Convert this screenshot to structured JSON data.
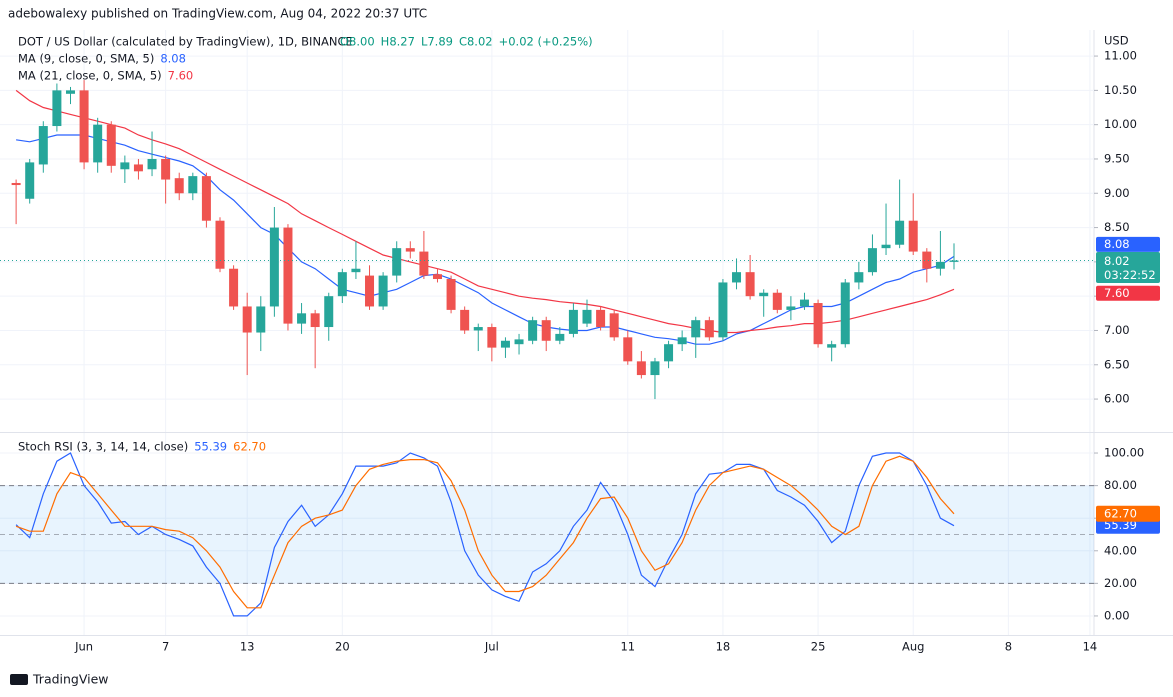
{
  "header": {
    "text": "adebowalexy published on TradingView.com, Aug 04, 2022 20:37 UTC"
  },
  "footer": {
    "brand": "TradingView"
  },
  "chart_data": [
    {
      "type": "candlestick",
      "title": "DOT / US Dollar (calculated by TradingView), 1D, BINANCE",
      "ohlc_legend": [
        "O8.00",
        "H8.27",
        "L7.89",
        "C8.02",
        "+0.02 (+0.25%)"
      ],
      "y_axis_label": "USD",
      "up_color": "#26a69a",
      "down_color": "#ef5350",
      "open": [
        9.15,
        8.92,
        9.42,
        9.98,
        10.45,
        10.5,
        9.45,
        10.0,
        9.35,
        9.42,
        9.35,
        9.5,
        9.22,
        9.0,
        9.25,
        8.6,
        7.9,
        7.35,
        6.97,
        7.35,
        8.5,
        7.1,
        7.25,
        7.05,
        7.5,
        7.85,
        7.8,
        7.35,
        7.8,
        8.2,
        8.15,
        7.82,
        7.75,
        7.3,
        7.0,
        7.05,
        6.75,
        6.8,
        6.85,
        7.15,
        6.85,
        6.95,
        7.1,
        7.3,
        7.25,
        6.9,
        6.55,
        6.35,
        6.55,
        6.8,
        6.9,
        7.15,
        6.9,
        7.7,
        7.85,
        7.5,
        7.55,
        7.3,
        7.35,
        7.4,
        6.75,
        6.8,
        7.7,
        7.85,
        8.2,
        8.25,
        8.6,
        8.15,
        7.9,
        8.0
      ],
      "high": [
        9.2,
        9.5,
        10.05,
        10.6,
        10.55,
        10.65,
        10.1,
        10.05,
        9.55,
        9.5,
        9.9,
        9.55,
        9.3,
        9.3,
        9.3,
        8.65,
        7.95,
        7.55,
        7.5,
        8.8,
        8.55,
        7.4,
        7.3,
        7.55,
        7.9,
        8.3,
        7.95,
        7.85,
        8.3,
        8.3,
        8.45,
        7.9,
        7.8,
        7.35,
        7.1,
        7.1,
        6.9,
        6.95,
        7.2,
        7.2,
        7.05,
        7.4,
        7.45,
        7.35,
        7.3,
        7.0,
        6.7,
        6.6,
        6.85,
        7.0,
        7.2,
        7.2,
        7.75,
        8.05,
        8.1,
        7.6,
        7.6,
        7.5,
        7.55,
        7.45,
        6.85,
        7.75,
        8.0,
        8.4,
        8.85,
        9.2,
        9.0,
        8.2,
        8.45,
        8.27
      ],
      "low": [
        8.55,
        8.85,
        9.3,
        9.9,
        10.3,
        9.35,
        9.3,
        9.3,
        9.15,
        9.2,
        9.25,
        8.85,
        8.9,
        8.9,
        8.5,
        7.85,
        7.3,
        6.35,
        6.7,
        7.2,
        7.0,
        6.95,
        6.45,
        6.85,
        7.4,
        7.75,
        7.3,
        7.3,
        7.7,
        8.05,
        7.75,
        7.7,
        7.25,
        6.95,
        6.7,
        6.55,
        6.6,
        6.65,
        6.8,
        6.7,
        6.8,
        6.9,
        7.05,
        7.0,
        6.85,
        6.5,
        6.3,
        6.0,
        6.45,
        6.7,
        6.6,
        6.85,
        6.85,
        7.6,
        7.45,
        7.2,
        7.25,
        7.15,
        7.3,
        6.75,
        6.55,
        6.75,
        7.6,
        7.8,
        8.1,
        8.2,
        8.1,
        7.7,
        7.8,
        7.89
      ],
      "close": [
        9.12,
        9.45,
        9.98,
        10.5,
        10.5,
        9.45,
        10.0,
        9.4,
        9.45,
        9.32,
        9.5,
        9.2,
        9.0,
        9.25,
        8.6,
        7.9,
        7.35,
        6.97,
        7.35,
        8.5,
        7.1,
        7.25,
        7.05,
        7.5,
        7.85,
        7.9,
        7.35,
        7.8,
        8.2,
        8.15,
        7.8,
        7.75,
        7.3,
        7.0,
        7.05,
        6.75,
        6.85,
        6.87,
        7.15,
        6.85,
        6.95,
        7.3,
        7.3,
        7.05,
        6.9,
        6.55,
        6.35,
        6.55,
        6.8,
        6.9,
        7.15,
        6.9,
        7.7,
        7.85,
        7.5,
        7.55,
        7.3,
        7.35,
        7.45,
        6.8,
        6.8,
        7.7,
        7.85,
        8.2,
        8.25,
        8.6,
        8.15,
        7.9,
        8.0,
        8.02
      ],
      "countdown": "03:22:52",
      "series": [
        {
          "name": "MA (9, close, 0, SMA, 5)",
          "color": "#2962ff",
          "last_label": "8.08",
          "values": [
            9.78,
            9.75,
            9.8,
            9.85,
            9.85,
            9.85,
            9.8,
            9.75,
            9.7,
            9.62,
            9.57,
            9.52,
            9.47,
            9.4,
            9.25,
            9.05,
            8.9,
            8.7,
            8.5,
            8.4,
            8.2,
            8.0,
            7.9,
            7.75,
            7.6,
            7.55,
            7.5,
            7.55,
            7.6,
            7.7,
            7.8,
            7.82,
            7.75,
            7.65,
            7.55,
            7.4,
            7.3,
            7.2,
            7.1,
            7.05,
            7.02,
            7.0,
            7.0,
            7.05,
            7.05,
            7.0,
            6.95,
            6.9,
            6.88,
            6.85,
            6.8,
            6.8,
            6.85,
            6.95,
            7.0,
            7.1,
            7.2,
            7.3,
            7.35,
            7.35,
            7.35,
            7.4,
            7.5,
            7.6,
            7.7,
            7.75,
            7.85,
            7.9,
            7.95,
            8.08
          ]
        },
        {
          "name": "MA (21, close, 0, SMA, 5)",
          "color": "#f23645",
          "last_label": "7.60",
          "values": [
            10.5,
            10.35,
            10.25,
            10.2,
            10.15,
            10.1,
            10.05,
            10.0,
            9.95,
            9.85,
            9.78,
            9.72,
            9.65,
            9.55,
            9.45,
            9.35,
            9.25,
            9.15,
            9.05,
            8.95,
            8.85,
            8.7,
            8.6,
            8.5,
            8.4,
            8.3,
            8.2,
            8.1,
            8.05,
            8.0,
            7.95,
            7.9,
            7.85,
            7.75,
            7.65,
            7.6,
            7.55,
            7.5,
            7.47,
            7.45,
            7.42,
            7.4,
            7.38,
            7.35,
            7.3,
            7.25,
            7.2,
            7.15,
            7.1,
            7.07,
            7.03,
            7.0,
            6.97,
            6.97,
            7.0,
            7.02,
            7.05,
            7.07,
            7.1,
            7.1,
            7.12,
            7.15,
            7.2,
            7.25,
            7.3,
            7.35,
            7.4,
            7.45,
            7.52,
            7.6
          ]
        }
      ],
      "xlim": [
        -0.45,
        79.3
      ],
      "ylim": [
        5.52,
        11.38
      ],
      "yticks": [
        {
          "value": 6,
          "label": "6.00"
        },
        {
          "value": 6.5,
          "label": "6.50"
        },
        {
          "value": 7,
          "label": "7.00"
        },
        {
          "value": 7.5,
          "label": "7.50"
        },
        {
          "value": 8,
          "label": "8.00"
        },
        {
          "value": 8.5,
          "label": "8.50"
        },
        {
          "value": 9,
          "label": "9.00"
        },
        {
          "value": 9.5,
          "label": "9.50"
        },
        {
          "value": 10,
          "label": "10.00"
        },
        {
          "value": 10.5,
          "label": "10.50"
        },
        {
          "value": 11,
          "label": "11.00"
        }
      ],
      "grid": true
    },
    {
      "type": "line",
      "title": "Stoch RSI (3, 3, 14, 14, close)",
      "series": [
        {
          "name": "K",
          "color": "#2962ff",
          "last_label": "55.39",
          "values": [
            56,
            48,
            75,
            95,
            100,
            80,
            70,
            57,
            58,
            50,
            55,
            50,
            47,
            43,
            30,
            20,
            0,
            0,
            8,
            42,
            58,
            68,
            55,
            62,
            75,
            92,
            92,
            92,
            94,
            100,
            97,
            92,
            70,
            40,
            25,
            16,
            12,
            9,
            27,
            32,
            40,
            55,
            65,
            82,
            70,
            50,
            25,
            18,
            35,
            50,
            75,
            87,
            88,
            93,
            93,
            90,
            77,
            73,
            68,
            58,
            45,
            52,
            80,
            98,
            100,
            100,
            95,
            80,
            60,
            55.39
          ]
        },
        {
          "name": "D",
          "color": "#ff6d00",
          "last_label": "62.70",
          "values": [
            55,
            52,
            52,
            75,
            88,
            85,
            75,
            65,
            55,
            55,
            55,
            53,
            52,
            48,
            40,
            30,
            15,
            5,
            5,
            25,
            45,
            55,
            60,
            62,
            65,
            80,
            90,
            93,
            95,
            96,
            96,
            94,
            83,
            65,
            40,
            25,
            15,
            15,
            18,
            25,
            35,
            45,
            60,
            72,
            73,
            60,
            40,
            28,
            32,
            45,
            65,
            80,
            88,
            90,
            92,
            90,
            85,
            80,
            73,
            65,
            55,
            50,
            55,
            80,
            95,
            98,
            95,
            85,
            72,
            62.7
          ]
        }
      ],
      "band": [
        20,
        80
      ],
      "midline": 50,
      "xlim": [
        -0.45,
        79.3
      ],
      "ylim": [
        -11.7,
        112.3
      ],
      "yticks": [
        {
          "value": 0,
          "label": "0.00"
        },
        {
          "value": 20,
          "label": "20.00"
        },
        {
          "value": 40,
          "label": "40.00"
        },
        {
          "value": 60,
          "label": "60.00"
        },
        {
          "value": 80,
          "label": "80.00"
        },
        {
          "value": 100,
          "label": "100.00"
        }
      ],
      "xticks": [
        {
          "value": 5,
          "label": "Jun"
        },
        {
          "value": 11,
          "label": "7"
        },
        {
          "value": 17,
          "label": "13"
        },
        {
          "value": 24,
          "label": "20"
        },
        {
          "value": 35,
          "label": "Jul"
        },
        {
          "value": 45,
          "label": "11"
        },
        {
          "value": 52,
          "label": "18"
        },
        {
          "value": 59,
          "label": "25"
        },
        {
          "value": 66,
          "label": "Aug"
        },
        {
          "value": 73,
          "label": "8"
        },
        {
          "value": 79,
          "label": "14"
        }
      ],
      "grid": true
    }
  ]
}
